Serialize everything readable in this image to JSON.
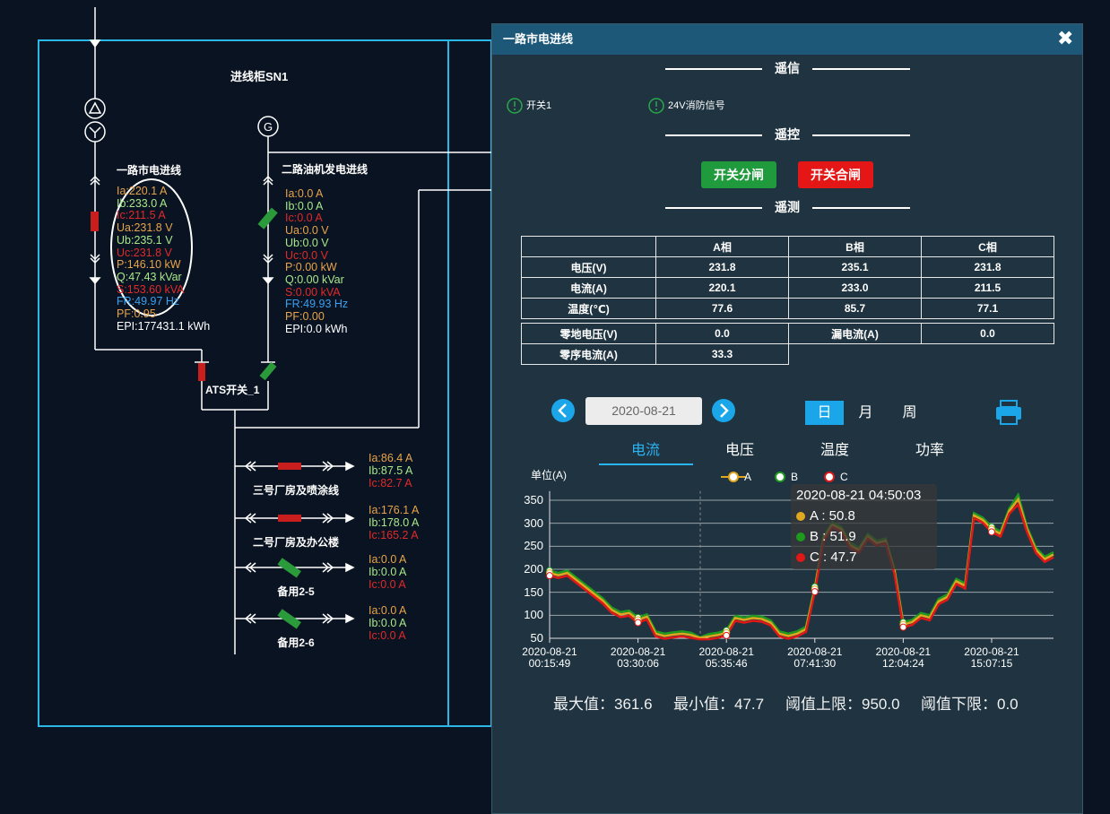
{
  "diagram": {
    "cabinet": "进线柜SN1",
    "incomers": [
      {
        "name": "一路市电进线",
        "readings": [
          "Ia:220.1 A",
          "Ib:233.0 A",
          "Ic:211.5 A",
          "Ua:231.8 V",
          "Ub:235.1 V",
          "Uc:231.8 V",
          "P:146.10 kW",
          "Q:47.43 kVar",
          "S:153.60 kVA",
          "FR:49.97 Hz",
          "PF:0.95",
          "EPI:177431.1 kWh"
        ]
      },
      {
        "name": "二路油机发电进线",
        "readings": [
          "Ia:0.0 A",
          "Ib:0.0 A",
          "Ic:0.0 A",
          "Ua:0.0 V",
          "Ub:0.0 V",
          "Uc:0.0 V",
          "P:0.00 kW",
          "Q:0.00 kVar",
          "S:0.00 kVA",
          "FR:49.93 Hz",
          "PF:0.00",
          "EPI:0.0 kWh"
        ]
      }
    ],
    "ats": "ATS开关_1",
    "feeders": [
      {
        "name": "三号厂房及喷涂线",
        "readings": [
          "Ia:86.4 A",
          "Ib:87.5 A",
          "Ic:82.7 A"
        ]
      },
      {
        "name": "二号厂房及办公楼",
        "readings": [
          "Ia:176.1 A",
          "Ib:178.0 A",
          "Ic:165.2 A"
        ]
      },
      {
        "name": "备用2-5",
        "readings": [
          "Ia:0.0 A",
          "Ib:0.0 A",
          "Ic:0.0 A"
        ]
      },
      {
        "name": "备用2-6",
        "readings": [
          "Ia:0.0 A",
          "Ib:0.0 A",
          "Ic:0.0 A"
        ]
      }
    ]
  },
  "dialog": {
    "title": "一路市电进线",
    "sections": [
      "遥信",
      "遥控",
      "遥测"
    ],
    "signals": [
      "开关1",
      "24V消防信号"
    ],
    "buttons": [
      "开关分闸",
      "开关合闸"
    ],
    "table": {
      "header": [
        "A相",
        "B相",
        "C相"
      ],
      "rows": [
        {
          "label": "电压(V)",
          "cells": [
            "231.8",
            "235.1",
            "231.8"
          ]
        },
        {
          "label": "电流(A)",
          "cells": [
            "220.1",
            "233.0",
            "211.5"
          ]
        },
        {
          "label": "温度(℃)",
          "cells": [
            "77.6",
            "85.7",
            "77.1"
          ]
        }
      ]
    },
    "extra_table": [
      [
        "零地电压(V)",
        "0.0",
        "漏电流(A)",
        "0.0"
      ],
      [
        "零序电流(A)",
        "33.3"
      ]
    ],
    "date": "2020-08-21",
    "periods": [
      "日",
      "月",
      "周"
    ],
    "tabs": [
      "电流",
      "电压",
      "温度",
      "功率"
    ],
    "stats": [
      "最大值：361.6",
      "最小值：47.7",
      "阈值上限：950.0",
      "阈值下限：0.0"
    ]
  },
  "chart_data": {
    "type": "line",
    "y_unit": "单位(A)",
    "categories": [
      "2020-08-21 00:15:49",
      null,
      null,
      null,
      null,
      null,
      null,
      null,
      null,
      null,
      "2020-08-21 03:30:06",
      null,
      null,
      null,
      null,
      null,
      null,
      null,
      null,
      null,
      "2020-08-21 05:35:46",
      null,
      null,
      null,
      null,
      null,
      null,
      null,
      null,
      null,
      "2020-08-21 07:41:30",
      null,
      null,
      null,
      null,
      null,
      null,
      null,
      null,
      null,
      "2020-08-21 12:04:24",
      null,
      null,
      null,
      null,
      null,
      null,
      null,
      null,
      null,
      "2020-08-21 15:07:15",
      null,
      null,
      null,
      null,
      null,
      null,
      null
    ],
    "series": [
      {
        "name": "B",
        "color": "#1f9a1f",
        "values": [
          197,
          192,
          197,
          182,
          167,
          152,
          137,
          117,
          107,
          110,
          95,
          102,
          65,
          60,
          63,
          65,
          62,
          51.9,
          59,
          62,
          67,
          99,
          95,
          99,
          97,
          89,
          65,
          60,
          65,
          75,
          162,
          272,
          302,
          292,
          257,
          247,
          277,
          262,
          267,
          202,
          85,
          90,
          105,
          100,
          135,
          145,
          179,
          169,
          322,
          312,
          292,
          282,
          332,
          361.6,
          292,
          247,
          227,
          237
        ]
      },
      {
        "name": "A",
        "color": "#e0a820",
        "values": [
          192,
          187,
          192,
          177,
          162,
          147,
          132,
          112,
          102,
          105,
          90,
          97,
          60,
          55,
          58,
          60,
          57,
          50.8,
          54,
          57,
          62,
          94,
          90,
          94,
          92,
          84,
          60,
          55,
          60,
          70,
          157,
          267,
          297,
          287,
          252,
          242,
          272,
          257,
          262,
          197,
          80,
          85,
          100,
          95,
          130,
          140,
          174,
          164,
          317,
          307,
          287,
          277,
          327,
          352,
          287,
          242,
          222,
          232
        ]
      },
      {
        "name": "C",
        "color": "#e01818",
        "values": [
          186,
          181,
          186,
          171,
          156,
          141,
          126,
          106,
          96,
          99,
          84,
          91,
          54,
          49,
          52,
          54,
          51,
          47.7,
          48,
          51,
          56,
          88,
          84,
          88,
          86,
          78,
          54,
          49,
          54,
          64,
          151,
          261,
          291,
          281,
          246,
          236,
          266,
          251,
          256,
          191,
          74,
          79,
          94,
          89,
          124,
          134,
          168,
          158,
          311,
          301,
          281,
          271,
          321,
          341,
          281,
          236,
          216,
          226
        ]
      }
    ],
    "ylim": [
      50,
      370
    ],
    "yticks": [
      50,
      100,
      150,
      200,
      250,
      300,
      350
    ],
    "grid": true,
    "tooltip": {
      "title": "2020-08-21 04:50:03",
      "items": [
        "A : 50.8",
        "B : 51.9",
        "C : 47.7"
      ]
    }
  }
}
